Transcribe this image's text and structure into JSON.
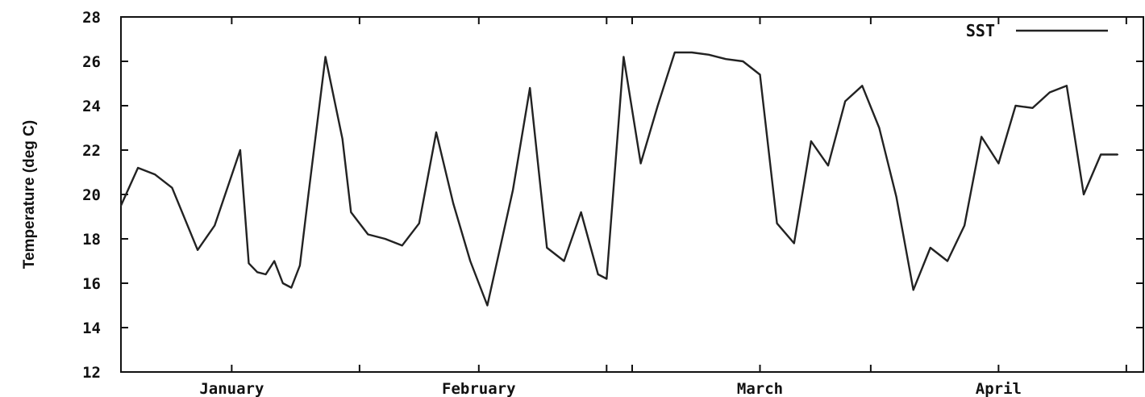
{
  "chart_data": {
    "type": "line",
    "title": "",
    "xlabel": "",
    "ylabel": "Temperature (deg C)",
    "ylim": [
      12,
      28
    ],
    "yticks": [
      12,
      14,
      16,
      18,
      20,
      22,
      24,
      26,
      28
    ],
    "xlim": [
      0,
      120
    ],
    "month_labels": [
      {
        "label": "January",
        "x": 13
      },
      {
        "label": "February",
        "x": 42
      },
      {
        "label": "March",
        "x": 75
      },
      {
        "label": "April",
        "x": 103
      }
    ],
    "x_tick_marks": [
      13,
      28,
      42,
      57,
      60,
      75,
      88,
      103,
      118
    ],
    "legend_position": "top-right",
    "grid": false,
    "series": [
      {
        "name": "SST",
        "color": "#222222",
        "points": [
          [
            0,
            19.5
          ],
          [
            2,
            21.2
          ],
          [
            4,
            20.9
          ],
          [
            6,
            20.3
          ],
          [
            9,
            17.5
          ],
          [
            11,
            18.6
          ],
          [
            14,
            22.0
          ],
          [
            15,
            16.9
          ],
          [
            16,
            16.5
          ],
          [
            17,
            16.4
          ],
          [
            18,
            17.0
          ],
          [
            19,
            16.0
          ],
          [
            20,
            15.8
          ],
          [
            21,
            16.8
          ],
          [
            22,
            20.0
          ],
          [
            24,
            26.2
          ],
          [
            26,
            22.5
          ],
          [
            27,
            19.2
          ],
          [
            29,
            18.2
          ],
          [
            31,
            18.0
          ],
          [
            33,
            17.7
          ],
          [
            35,
            18.7
          ],
          [
            37,
            22.8
          ],
          [
            39,
            19.6
          ],
          [
            41,
            17.0
          ],
          [
            43,
            15.0
          ],
          [
            46,
            20.2
          ],
          [
            48,
            24.8
          ],
          [
            50,
            17.6
          ],
          [
            52,
            17.0
          ],
          [
            54,
            19.2
          ],
          [
            56,
            16.4
          ],
          [
            57,
            16.2
          ],
          [
            59,
            26.2
          ],
          [
            61,
            21.4
          ],
          [
            63,
            24.0
          ],
          [
            65,
            26.4
          ],
          [
            67,
            26.4
          ],
          [
            69,
            26.3
          ],
          [
            71,
            26.1
          ],
          [
            73,
            26.0
          ],
          [
            75,
            25.4
          ],
          [
            77,
            18.7
          ],
          [
            79,
            17.8
          ],
          [
            81,
            22.4
          ],
          [
            83,
            21.3
          ],
          [
            85,
            24.2
          ],
          [
            87,
            24.9
          ],
          [
            89,
            23.0
          ],
          [
            91,
            19.9
          ],
          [
            93,
            15.7
          ],
          [
            95,
            17.6
          ],
          [
            97,
            17.0
          ],
          [
            99,
            18.6
          ],
          [
            101,
            22.6
          ],
          [
            103,
            21.4
          ],
          [
            105,
            24.0
          ],
          [
            107,
            23.9
          ],
          [
            109,
            24.6
          ],
          [
            111,
            24.9
          ],
          [
            113,
            20.0
          ],
          [
            115,
            21.8
          ],
          [
            117,
            21.8
          ]
        ]
      }
    ]
  }
}
